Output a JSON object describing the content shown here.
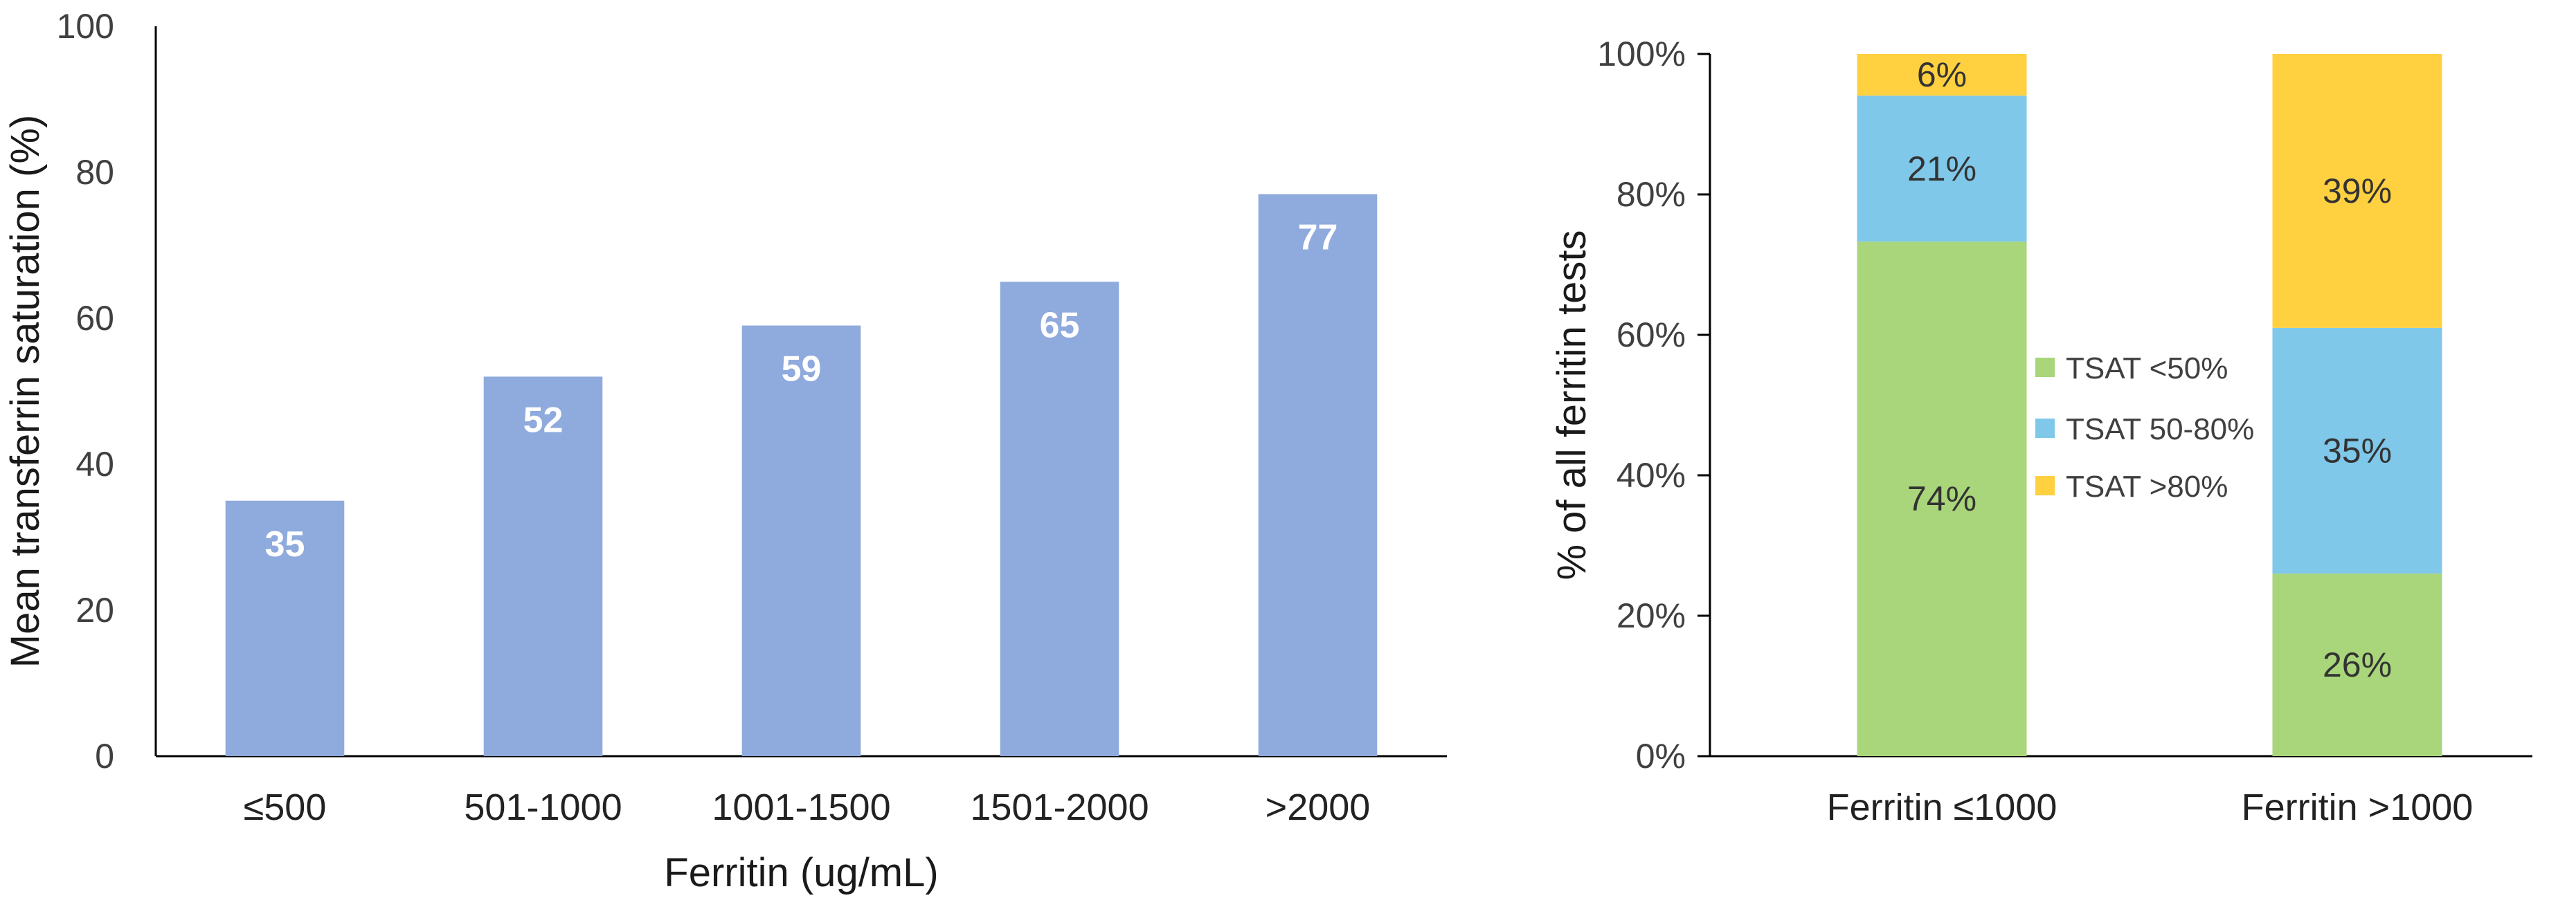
{
  "chart_data": [
    {
      "type": "bar",
      "categories": [
        "≤500",
        "501-1000",
        "1001-1500",
        "1501-2000",
        ">2000"
      ],
      "values": [
        35,
        52,
        59,
        65,
        77
      ],
      "data_labels": [
        "35",
        "52",
        "59",
        "65",
        "77"
      ],
      "xlabel": "Ferritin (ug/mL)",
      "ylabel": "Mean transferrin saturation (%)",
      "ylim": [
        0,
        100
      ],
      "yticks": [
        0,
        20,
        40,
        60,
        80,
        100
      ],
      "ytick_labels": [
        "0",
        "20",
        "40",
        "60",
        "80",
        "100"
      ],
      "grid": false,
      "bar_color": "#8FAADC",
      "data_label_color": "#ffffff"
    },
    {
      "type": "bar",
      "stacked": true,
      "categories": [
        "Ferritin ≤1000",
        "Ferritin >1000"
      ],
      "series": [
        {
          "name": "TSAT <50%",
          "values": [
            74,
            26
          ],
          "labels": [
            "74%",
            "26%"
          ],
          "color": "#A9D67A"
        },
        {
          "name": "TSAT 50-80%",
          "values": [
            21,
            35
          ],
          "labels": [
            "21%",
            "35%"
          ],
          "color": "#80C8E9"
        },
        {
          "name": "TSAT >80%",
          "values": [
            6,
            39
          ],
          "labels": [
            "6%",
            "39%"
          ],
          "color": "#FFD040"
        }
      ],
      "ylabel": "% of all ferritin tests",
      "ylim": [
        0,
        100
      ],
      "yticks": [
        0,
        20,
        40,
        60,
        80,
        100
      ],
      "ytick_labels": [
        "0%",
        "20%",
        "40%",
        "60%",
        "80%",
        "100%"
      ],
      "grid": false,
      "legend": "center"
    }
  ]
}
